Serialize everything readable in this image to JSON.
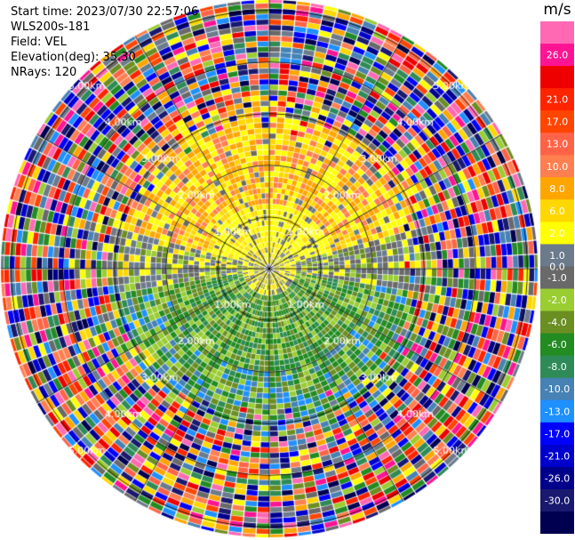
{
  "header": {
    "start_time": "Start time: 2023/07/30 22:57:06",
    "station": "WLS200s-181",
    "field": "Field: VEL",
    "elevation": "Elevation(deg): 35.30",
    "nrays": "NRays: 120"
  },
  "chart_data": {
    "type": "heatmap",
    "projection": "polar PPI",
    "field": "VEL",
    "units": "m/s",
    "n_rays": 120,
    "range_rings_km": [
      1,
      2,
      3,
      4,
      5
    ],
    "range_ring_labels": [
      "1.00km",
      "2.00km",
      "3.00km",
      "4.00km",
      "5.00km"
    ],
    "max_range_km": 5.2,
    "colorbar": {
      "units": "m/s",
      "tick_labels": [
        "26.0",
        "21.0",
        "17.0",
        "13.0",
        "10.0",
        "8.0",
        "6.0",
        "2.0",
        "1.0",
        "0.0",
        "-1.0",
        "-2.0",
        "-4.0",
        "-6.0",
        "-8.0",
        "-10.0",
        "-13.0",
        "-17.0",
        "-21.0",
        "-26.0",
        "-30.0"
      ],
      "bin_colors": [
        "#ff69b4",
        "#ff1493",
        "#ee0000",
        "#ff2400",
        "#ff4500",
        "#ff6347",
        "#ff7f50",
        "#ffa500",
        "#ffd700",
        "#ffff00",
        "#6b7b8c",
        "#696969",
        "#9acd32",
        "#6b8e23",
        "#228b22",
        "#2e8b57",
        "#4682b4",
        "#1e90ff",
        "#0000ff",
        "#0000cd",
        "#00008b",
        "#191970",
        "#000050"
      ],
      "tick_bins": [
        1,
        3,
        4,
        5,
        6,
        7,
        8,
        9,
        10,
        10.5,
        11,
        12,
        13,
        14,
        15,
        16,
        17,
        18,
        19,
        20,
        21
      ]
    }
  }
}
